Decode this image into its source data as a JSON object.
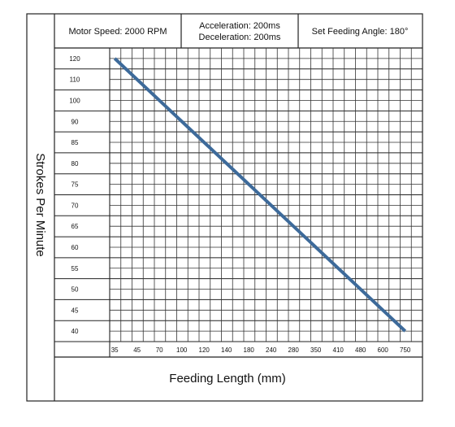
{
  "header": {
    "motor_speed": "Motor Speed: 2000 RPM",
    "acceleration": "Acceleration: 200ms",
    "deceleration": "Deceleration: 200ms",
    "feeding_angle": "Set Feeding Angle: 180°"
  },
  "chart_data": {
    "type": "line",
    "xlabel": "Feeding Length (mm)",
    "ylabel": "Strokes Per Minute",
    "y_ticks": [
      "120",
      "110",
      "100",
      "90",
      "85",
      "80",
      "75",
      "70",
      "65",
      "60",
      "55",
      "50",
      "45",
      "40"
    ],
    "x_ticks": [
      "35",
      "45",
      "70",
      "100",
      "120",
      "140",
      "180",
      "240",
      "280",
      "350",
      "410",
      "480",
      "600",
      "750"
    ],
    "grid": true,
    "series": [
      {
        "x": [
          "35",
          "750"
        ],
        "y": [
          "120",
          "40"
        ],
        "color": "#3d6a9a"
      }
    ]
  }
}
